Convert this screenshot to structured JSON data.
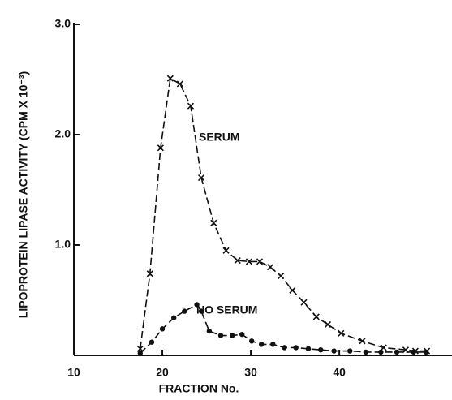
{
  "chart_data": {
    "type": "line",
    "y_label": "LIPOPROTEIN LIPASE ACTIVITY (CPM X 10⁻³)",
    "x_label": "FRACTION No.",
    "xlim": [
      10,
      52
    ],
    "xticks": [
      10,
      20,
      30,
      40
    ],
    "ylim": [
      0,
      3.0
    ],
    "yticks": [
      {
        "value": 1,
        "label": "1.0"
      },
      {
        "value": 2,
        "label": "2.0"
      },
      {
        "value": 3,
        "label": "3.0"
      }
    ],
    "series": [
      {
        "name": "SERUM",
        "color": "#111111",
        "marker": "x",
        "x": [
          17.5,
          18.6,
          19.8,
          20.9,
          22.0,
          23.2,
          24.4,
          25.8,
          27.2,
          28.5,
          29.8,
          31.0,
          32.2,
          33.4,
          34.7,
          36.0,
          37.4,
          38.7,
          40.2,
          42.6,
          45.0,
          47.5,
          48.6,
          49.9
        ],
        "values": [
          0.06,
          0.74,
          1.88,
          2.51,
          2.46,
          2.26,
          1.61,
          1.2,
          0.95,
          0.86,
          0.85,
          0.85,
          0.8,
          0.72,
          0.59,
          0.48,
          0.35,
          0.28,
          0.2,
          0.13,
          0.07,
          0.05,
          0.04,
          0.04
        ]
      },
      {
        "name": "NO SERUM",
        "color": "#111111",
        "marker": "dot",
        "x": [
          17.5,
          18.8,
          20.0,
          21.3,
          22.5,
          23.9,
          24.4,
          25.3,
          26.6,
          27.9,
          29.0,
          30.1,
          31.2,
          32.5,
          33.8,
          35.1,
          36.5,
          37.9,
          39.4,
          41.2,
          43.0,
          44.7,
          46.5,
          48.4,
          49.8
        ],
        "values": [
          0.02,
          0.12,
          0.24,
          0.34,
          0.4,
          0.46,
          0.4,
          0.22,
          0.18,
          0.18,
          0.19,
          0.13,
          0.1,
          0.1,
          0.07,
          0.07,
          0.06,
          0.05,
          0.04,
          0.04,
          0.03,
          0.03,
          0.03,
          0.03,
          0.03
        ]
      }
    ]
  }
}
